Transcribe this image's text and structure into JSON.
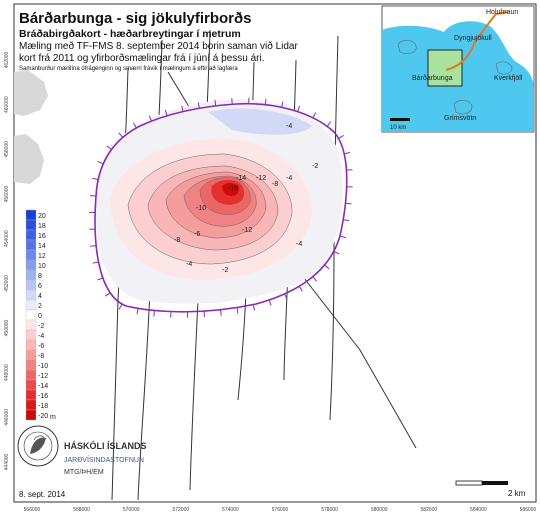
{
  "header": {
    "title": "Bárðarbunga - sig jökulyfirborðs",
    "subtitle": "Bráðabirgðakort - hæðarbreytingar í metrum",
    "description_line1": "Mæling með TF-FMS 8. september 2014 borin saman við Lidar",
    "description_line2": "kort frá 2011 og yfirborðsmælingar frá í júní á þessu ári.",
    "note": "Samanburður mælilína ófrágenginn og smærri frávik í mælingum á eftir að lagfæra"
  },
  "inset": {
    "labels": {
      "holuhraun": "Holuhraun",
      "dyngjujokull": "Dyngjujökull",
      "bardarbunga": "Bárðarbunga",
      "kverkfjoll": "Kverkfjöll",
      "grimsvotn": "Grímsvötn"
    },
    "scale": "10 km",
    "colors": {
      "glacier": "#4fc8ef",
      "highlight": "#a8e3a0",
      "route": "#e07a1a"
    }
  },
  "legend": {
    "unit": "m",
    "classes": [
      {
        "label": "20",
        "color": "#1a3ed6"
      },
      {
        "label": "18",
        "color": "#2a4fdc"
      },
      {
        "label": "16",
        "color": "#3d62e0"
      },
      {
        "label": "14",
        "color": "#5474e4"
      },
      {
        "label": "12",
        "color": "#6d88e8"
      },
      {
        "label": "10",
        "color": "#869cec"
      },
      {
        "label": "8",
        "color": "#a0b1f0"
      },
      {
        "label": "6",
        "color": "#b9c5f3"
      },
      {
        "label": "4",
        "color": "#d2d9f7"
      },
      {
        "label": "2",
        "color": "#e9ecfb"
      },
      {
        "label": "0",
        "color": "#ffffff"
      },
      {
        "label": "-2",
        "color": "#fde6e6"
      },
      {
        "label": "-4",
        "color": "#fbcfcf"
      },
      {
        "label": "-6",
        "color": "#f8b6b6"
      },
      {
        "label": "-8",
        "color": "#f59c9c"
      },
      {
        "label": "-10",
        "color": "#f18282"
      },
      {
        "label": "-12",
        "color": "#ec6666"
      },
      {
        "label": "-14",
        "color": "#e74b4b"
      },
      {
        "label": "-16",
        "color": "#e13131"
      },
      {
        "label": "-18",
        "color": "#d91a1a"
      },
      {
        "label": "-20",
        "color": "#cf0a0a"
      }
    ]
  },
  "contour_labels": [
    "-16",
    "-14",
    "-12",
    "-10",
    "-8",
    "-8",
    "-6",
    "-4",
    "-4",
    "-4",
    "-2",
    "-2",
    "-12",
    "-4"
  ],
  "axes": {
    "x_ticks": [
      "566000",
      "568000",
      "570000",
      "572000",
      "574000",
      "576000",
      "578000",
      "580000",
      "582000",
      "584000",
      "586000"
    ],
    "y_ticks": [
      "462000",
      "460000",
      "458000",
      "456000",
      "454000",
      "452000",
      "450000",
      "448000",
      "446000",
      "444000"
    ]
  },
  "footer": {
    "university": "HÁSKÓLI ÍSLANDS",
    "institute": "JARÐVÍSINDASTOFNUN",
    "authors": "MTG/ÞH/EM",
    "date": "8. sept. 2014",
    "scale": "2 km"
  }
}
